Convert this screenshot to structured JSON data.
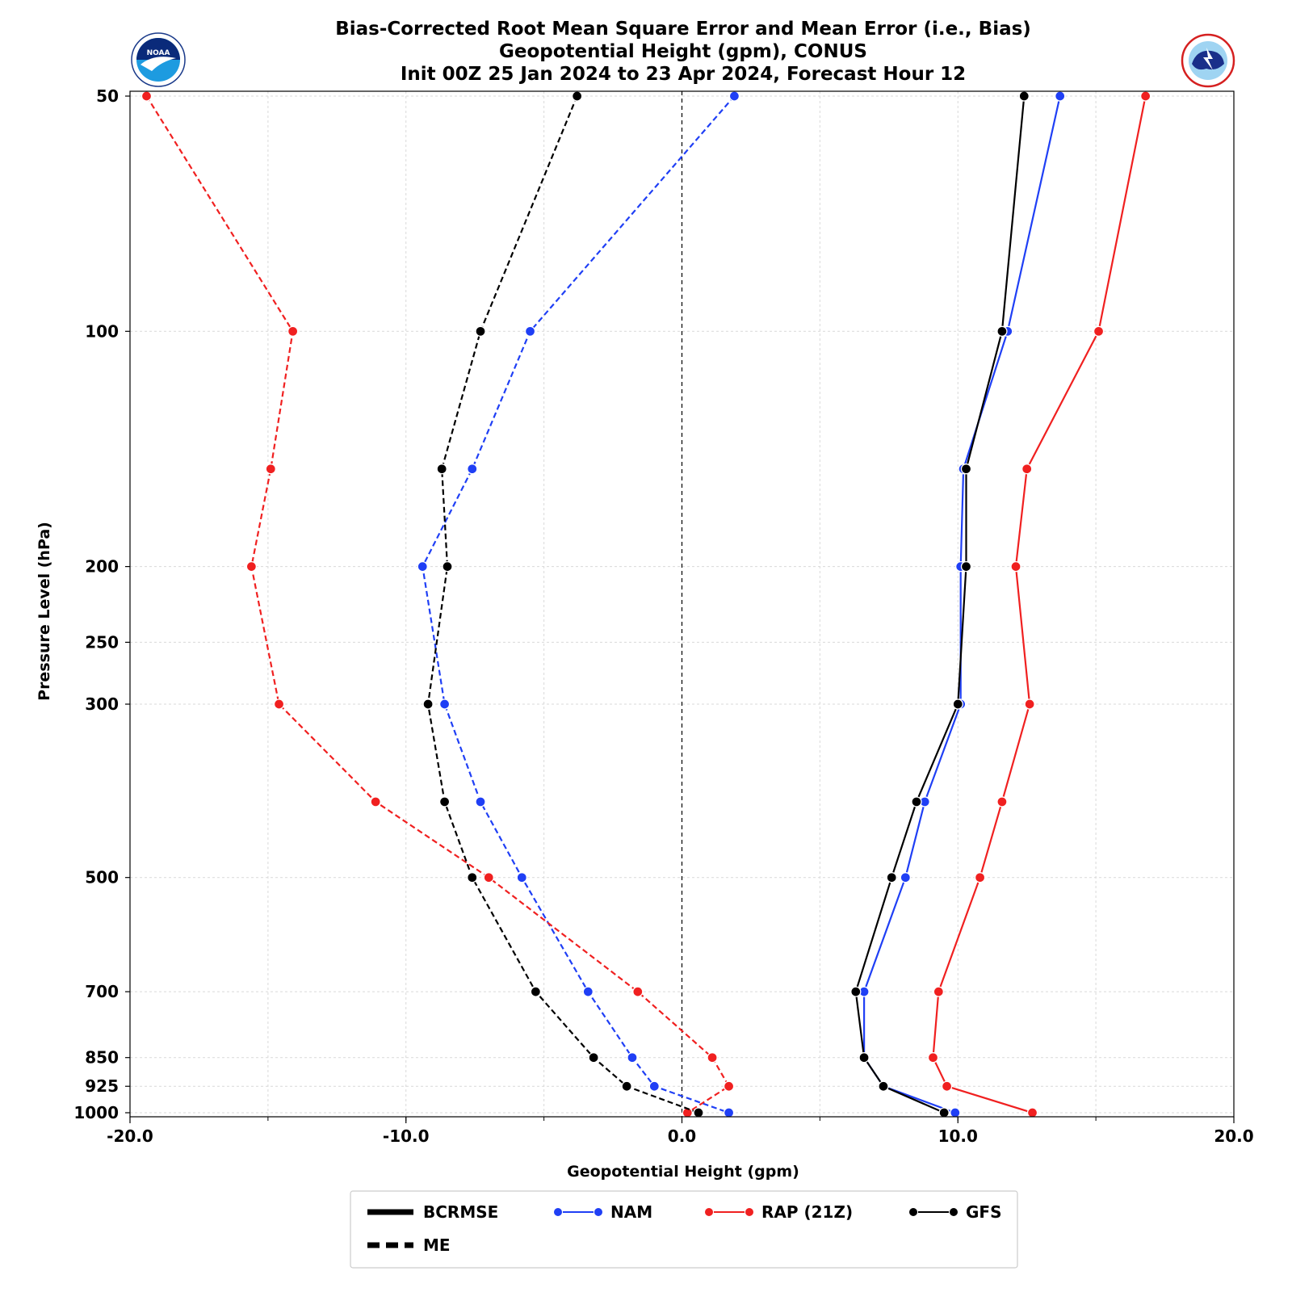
{
  "chart_data": {
    "type": "line",
    "title": [
      "Bias-Corrected Root Mean Square Error and Mean Error (i.e., Bias)",
      "Geopotential Height (gpm), CONUS",
      "Init 00Z 25 Jan 2024 to 23 Apr 2024, Forecast Hour 12"
    ],
    "xlabel": "Geopotential Height (gpm)",
    "ylabel": "Pressure Level (hPa)",
    "xlim": [
      -20,
      20
    ],
    "ylim": [
      1000,
      50
    ],
    "y_scale": "log",
    "x_ticks": [
      -20,
      -10,
      0,
      10,
      20
    ],
    "x_tick_labels": [
      "-20.0",
      "-10.0",
      "0.0",
      "10.0",
      "20.0"
    ],
    "y_ticks": [
      50,
      100,
      200,
      250,
      300,
      500,
      700,
      850,
      925,
      1000
    ],
    "y_tick_labels": [
      "50",
      "100",
      "200",
      "250",
      "300",
      "500",
      "700",
      "850",
      "925",
      "1000"
    ],
    "grid": true,
    "zero_line": true,
    "levels": [
      50,
      100,
      150,
      200,
      300,
      400,
      500,
      700,
      850,
      925,
      1000
    ],
    "series": [
      {
        "model": "NAM",
        "metric": "BCRMSE",
        "color": "#1f3ff5",
        "dashed": false,
        "x": [
          13.7,
          11.8,
          10.2,
          10.1,
          10.1,
          8.8,
          8.1,
          6.6,
          6.6,
          7.3,
          9.9
        ]
      },
      {
        "model": "RAP (21Z)",
        "metric": "BCRMSE",
        "color": "#f02020",
        "dashed": false,
        "x": [
          16.8,
          15.1,
          12.5,
          12.1,
          12.6,
          11.6,
          10.8,
          9.3,
          9.1,
          9.6,
          12.7
        ]
      },
      {
        "model": "GFS",
        "metric": "BCRMSE",
        "color": "#000000",
        "dashed": false,
        "x": [
          12.4,
          11.6,
          10.3,
          10.3,
          10.0,
          8.5,
          7.6,
          6.3,
          6.6,
          7.3,
          9.5
        ]
      },
      {
        "model": "NAM",
        "metric": "ME",
        "color": "#1f3ff5",
        "dashed": true,
        "x": [
          1.9,
          -5.5,
          -7.6,
          -9.4,
          -8.6,
          -7.3,
          -5.8,
          -3.4,
          -1.8,
          -1.0,
          1.7
        ]
      },
      {
        "model": "RAP (21Z)",
        "metric": "ME",
        "color": "#f02020",
        "dashed": true,
        "x": [
          -19.4,
          -14.1,
          -14.9,
          -15.6,
          -14.6,
          -11.1,
          -7.0,
          -1.6,
          1.1,
          1.7,
          0.2
        ]
      },
      {
        "model": "GFS",
        "metric": "ME",
        "color": "#000000",
        "dashed": true,
        "x": [
          -3.8,
          -7.3,
          -8.7,
          -8.5,
          -9.2,
          -8.6,
          -7.6,
          -5.3,
          -3.2,
          -2.0,
          0.6
        ]
      }
    ],
    "legend": {
      "placement": "bottom-center",
      "entries": [
        {
          "label": "BCRMSE",
          "kind": "line-solid",
          "color": "#000000"
        },
        {
          "label": "NAM",
          "kind": "marker-line",
          "color": "#1f3ff5"
        },
        {
          "label": "RAP (21Z)",
          "kind": "marker-line",
          "color": "#f02020"
        },
        {
          "label": "GFS",
          "kind": "marker-line",
          "color": "#000000"
        },
        {
          "label": "ME",
          "kind": "line-dashed",
          "color": "#000000"
        }
      ]
    },
    "logos": [
      "noaa-logo",
      "nws-logo"
    ]
  }
}
